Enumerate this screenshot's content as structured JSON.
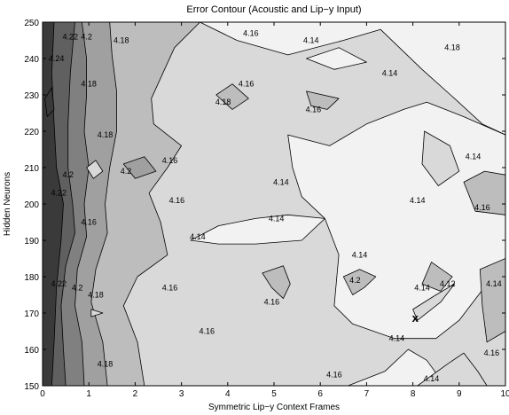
{
  "chart_data": {
    "type": "contour",
    "title": "Error Contour (Acoustic and Lip−y Input)",
    "xlabel": "Symmetric Lip−y Context Frames",
    "ylabel": "Hidden Neurons",
    "xlim": [
      0,
      10
    ],
    "ylim": [
      150,
      250
    ],
    "xticks": [
      "0",
      "1",
      "2",
      "3",
      "4",
      "5",
      "6",
      "7",
      "8",
      "9",
      "10"
    ],
    "yticks": [
      "150",
      "160",
      "170",
      "180",
      "190",
      "200",
      "210",
      "220",
      "230",
      "240",
      "250"
    ],
    "grid": false,
    "levels": [
      {
        "max": 4.14,
        "color": "#f2f2f2"
      },
      {
        "max": 4.16,
        "color": "#d9d9d9"
      },
      {
        "max": 4.18,
        "color": "#bdbdbd"
      },
      {
        "max": 4.2,
        "color": "#a0a0a0"
      },
      {
        "max": 4.22,
        "color": "#808080"
      },
      {
        "max": 4.24,
        "color": "#606060"
      },
      {
        "max": 99,
        "color": "#3a3a3a"
      }
    ],
    "regions": [
      {
        "level": 1,
        "points": [
          [
            0,
            150
          ],
          [
            10,
            150
          ],
          [
            10,
            250
          ],
          [
            0,
            250
          ]
        ]
      },
      {
        "level": 2,
        "points": [
          [
            0,
            150
          ],
          [
            2.2,
            150
          ],
          [
            2.05,
            162
          ],
          [
            1.75,
            172
          ],
          [
            2.05,
            180
          ],
          [
            2.7,
            186
          ],
          [
            2.55,
            195
          ],
          [
            2.3,
            203
          ],
          [
            2.7,
            210
          ],
          [
            3.0,
            216
          ],
          [
            2.4,
            222
          ],
          [
            2.35,
            229
          ],
          [
            2.6,
            236
          ],
          [
            2.85,
            243
          ],
          [
            3.4,
            250
          ],
          [
            0,
            250
          ]
        ]
      },
      {
        "level": 3,
        "points": [
          [
            0,
            150
          ],
          [
            1.4,
            150
          ],
          [
            1.3,
            162
          ],
          [
            1.05,
            173
          ],
          [
            1.15,
            182
          ],
          [
            1.4,
            192
          ],
          [
            1.35,
            200
          ],
          [
            1.45,
            210
          ],
          [
            1.6,
            220
          ],
          [
            1.6,
            231
          ],
          [
            1.5,
            241
          ],
          [
            1.45,
            250
          ],
          [
            0,
            250
          ]
        ]
      },
      {
        "level": 4,
        "points": [
          [
            0,
            150
          ],
          [
            0.9,
            150
          ],
          [
            0.85,
            162
          ],
          [
            0.7,
            172
          ],
          [
            0.75,
            182
          ],
          [
            0.95,
            191
          ],
          [
            0.9,
            200
          ],
          [
            1.0,
            210
          ],
          [
            0.9,
            220
          ],
          [
            0.95,
            230
          ],
          [
            0.95,
            240
          ],
          [
            0.85,
            250
          ],
          [
            0,
            250
          ]
        ]
      },
      {
        "level": 5,
        "points": [
          [
            0,
            150
          ],
          [
            0.5,
            150
          ],
          [
            0.45,
            160
          ],
          [
            0.4,
            172
          ],
          [
            0.5,
            183
          ],
          [
            0.7,
            192
          ],
          [
            0.65,
            200
          ],
          [
            0.55,
            210
          ],
          [
            0.55,
            222
          ],
          [
            0.6,
            236
          ],
          [
            0.7,
            250
          ],
          [
            0,
            250
          ]
        ]
      },
      {
        "level": 6,
        "points": [
          [
            0,
            150
          ],
          [
            0.2,
            150
          ],
          [
            0.25,
            162
          ],
          [
            0.3,
            177
          ],
          [
            0.4,
            190
          ],
          [
            0.45,
            200
          ],
          [
            0.3,
            210
          ],
          [
            0.25,
            222
          ],
          [
            0.2,
            236
          ],
          [
            0.25,
            250
          ],
          [
            0,
            250
          ]
        ]
      },
      {
        "level": 0,
        "points": [
          [
            3.4,
            250
          ],
          [
            4.2,
            245
          ],
          [
            5.3,
            241
          ],
          [
            6.5,
            245
          ],
          [
            7.3,
            248
          ],
          [
            8.2,
            237
          ],
          [
            8.9,
            229
          ],
          [
            9.5,
            222
          ],
          [
            10,
            219
          ],
          [
            10,
            250
          ]
        ]
      },
      {
        "level": 0,
        "points": [
          [
            3.2,
            190
          ],
          [
            3.8,
            194
          ],
          [
            4.6,
            196
          ],
          [
            5.3,
            197
          ],
          [
            6.1,
            196
          ],
          [
            5.6,
            190
          ],
          [
            4.6,
            189
          ],
          [
            3.8,
            189
          ]
        ]
      },
      {
        "level": 0,
        "points": [
          [
            5.3,
            219
          ],
          [
            6.2,
            216
          ],
          [
            7.0,
            222
          ],
          [
            7.8,
            226
          ],
          [
            8.3,
            228
          ],
          [
            9.1,
            224
          ],
          [
            10,
            219
          ],
          [
            10,
            185
          ],
          [
            9.6,
            178
          ],
          [
            9.0,
            168
          ],
          [
            8.5,
            163
          ],
          [
            7.6,
            163
          ],
          [
            6.7,
            167
          ],
          [
            6.3,
            172
          ],
          [
            6.4,
            186
          ],
          [
            6.1,
            196
          ],
          [
            5.6,
            202
          ],
          [
            5.4,
            210
          ]
        ]
      },
      {
        "level": 0,
        "points": [
          [
            6.6,
            150
          ],
          [
            7.4,
            154
          ],
          [
            7.9,
            160
          ],
          [
            8.3,
            157
          ],
          [
            8.7,
            150
          ]
        ]
      },
      {
        "level": 0,
        "points": [
          [
            5.7,
            240
          ],
          [
            6.4,
            243
          ],
          [
            7.0,
            239
          ],
          [
            6.3,
            237
          ]
        ]
      },
      {
        "level": 1,
        "points": [
          [
            8.25,
            220
          ],
          [
            8.8,
            216
          ],
          [
            9.0,
            209
          ],
          [
            8.55,
            205
          ],
          [
            8.2,
            211
          ]
        ]
      },
      {
        "level": 1,
        "points": [
          [
            8.0,
            171
          ],
          [
            8.5,
            175
          ],
          [
            8.9,
            178
          ],
          [
            8.6,
            173
          ],
          [
            8.1,
            168
          ]
        ]
      },
      {
        "level": 1,
        "points": [
          [
            8.1,
            150
          ],
          [
            8.75,
            156
          ],
          [
            9.1,
            159
          ],
          [
            9.4,
            154
          ],
          [
            9.6,
            150
          ]
        ]
      },
      {
        "level": 1,
        "points": [
          [
            1.05,
            171
          ],
          [
            1.3,
            170
          ],
          [
            1.05,
            169
          ]
        ]
      },
      {
        "level": 2,
        "points": [
          [
            8.4,
            184
          ],
          [
            8.85,
            180
          ],
          [
            8.6,
            176
          ],
          [
            8.2,
            178
          ]
        ]
      },
      {
        "level": 2,
        "points": [
          [
            9.1,
            206
          ],
          [
            9.55,
            209
          ],
          [
            10,
            208
          ],
          [
            10,
            197
          ],
          [
            9.35,
            198
          ]
        ]
      },
      {
        "level": 2,
        "points": [
          [
            9.45,
            182
          ],
          [
            10,
            185
          ],
          [
            10,
            165
          ],
          [
            9.6,
            162
          ],
          [
            9.5,
            172
          ]
        ]
      },
      {
        "level": 2,
        "points": [
          [
            6.5,
            180
          ],
          [
            6.85,
            182
          ],
          [
            7.2,
            180
          ],
          [
            6.95,
            177
          ],
          [
            6.7,
            175
          ]
        ]
      },
      {
        "level": 2,
        "points": [
          [
            4.75,
            181
          ],
          [
            5.2,
            183
          ],
          [
            5.35,
            178
          ],
          [
            5.2,
            174
          ],
          [
            4.95,
            177
          ]
        ]
      },
      {
        "level": 2,
        "points": [
          [
            3.75,
            230
          ],
          [
            4.1,
            233
          ],
          [
            4.45,
            229
          ],
          [
            4.1,
            226
          ]
        ]
      },
      {
        "level": 2,
        "points": [
          [
            5.7,
            231
          ],
          [
            6.4,
            229
          ],
          [
            6.15,
            226
          ],
          [
            5.8,
            227
          ]
        ]
      },
      {
        "level": 3,
        "points": [
          [
            1.75,
            211
          ],
          [
            2.2,
            213
          ],
          [
            2.45,
            209
          ],
          [
            2.0,
            207
          ]
        ]
      },
      {
        "level": 1,
        "points": [
          [
            0.95,
            210
          ],
          [
            1.15,
            212
          ],
          [
            1.3,
            209
          ],
          [
            1.1,
            207
          ]
        ]
      },
      {
        "level": 6,
        "points": [
          [
            0.05,
            229
          ],
          [
            0.2,
            232
          ],
          [
            0.25,
            226
          ],
          [
            0.1,
            224
          ]
        ]
      }
    ],
    "labels": [
      {
        "text": "4.14",
        "x": 5.8,
        "y": 245
      },
      {
        "text": "4.18",
        "x": 8.85,
        "y": 243
      },
      {
        "text": "4.14",
        "x": 7.5,
        "y": 236
      },
      {
        "text": "4.16",
        "x": 4.5,
        "y": 247
      },
      {
        "text": "4.16",
        "x": 4.4,
        "y": 233
      },
      {
        "text": "4.18",
        "x": 3.9,
        "y": 228
      },
      {
        "text": "4.16",
        "x": 5.85,
        "y": 226
      },
      {
        "text": "4.14",
        "x": 9.3,
        "y": 213
      },
      {
        "text": "4.16",
        "x": 9.5,
        "y": 199
      },
      {
        "text": "4.14",
        "x": 8.1,
        "y": 201
      },
      {
        "text": "4.14",
        "x": 5.15,
        "y": 206
      },
      {
        "text": "4.16",
        "x": 2.75,
        "y": 212
      },
      {
        "text": "4.16",
        "x": 2.9,
        "y": 201
      },
      {
        "text": "4.18",
        "x": 1.35,
        "y": 219
      },
      {
        "text": "4.18",
        "x": 1.0,
        "y": 233
      },
      {
        "text": "4.2",
        "x": 0.95,
        "y": 246
      },
      {
        "text": "4.18",
        "x": 1.7,
        "y": 245
      },
      {
        "text": "4.22",
        "x": 0.6,
        "y": 246
      },
      {
        "text": "4.24",
        "x": 0.3,
        "y": 240
      },
      {
        "text": "4.2",
        "x": 1.8,
        "y": 209
      },
      {
        "text": "4.2",
        "x": 0.55,
        "y": 208
      },
      {
        "text": "4.22",
        "x": 0.35,
        "y": 203
      },
      {
        "text": "4.16",
        "x": 1.0,
        "y": 195
      },
      {
        "text": "4.14",
        "x": 3.35,
        "y": 191
      },
      {
        "text": "4.14",
        "x": 5.05,
        "y": 196
      },
      {
        "text": "4.16",
        "x": 2.75,
        "y": 177
      },
      {
        "text": "4.18",
        "x": 1.15,
        "y": 175
      },
      {
        "text": "4.2",
        "x": 0.75,
        "y": 177
      },
      {
        "text": "4.22",
        "x": 0.35,
        "y": 178
      },
      {
        "text": "4.16",
        "x": 4.95,
        "y": 173
      },
      {
        "text": "4.16",
        "x": 3.55,
        "y": 165
      },
      {
        "text": "4.18",
        "x": 1.35,
        "y": 156
      },
      {
        "text": "4.2",
        "x": 6.75,
        "y": 179
      },
      {
        "text": "4.14",
        "x": 6.85,
        "y": 186
      },
      {
        "text": "4.14",
        "x": 8.2,
        "y": 177
      },
      {
        "text": "4.12",
        "x": 8.75,
        "y": 178
      },
      {
        "text": "4.14",
        "x": 9.75,
        "y": 178
      },
      {
        "text": "4.14",
        "x": 7.65,
        "y": 163
      },
      {
        "text": "4.16",
        "x": 6.3,
        "y": 153
      },
      {
        "text": "4.14",
        "x": 8.4,
        "y": 152
      },
      {
        "text": "4.16",
        "x": 9.7,
        "y": 159
      }
    ],
    "markers": [
      {
        "text": "x",
        "x": 8.05,
        "y": 168.5
      }
    ]
  }
}
